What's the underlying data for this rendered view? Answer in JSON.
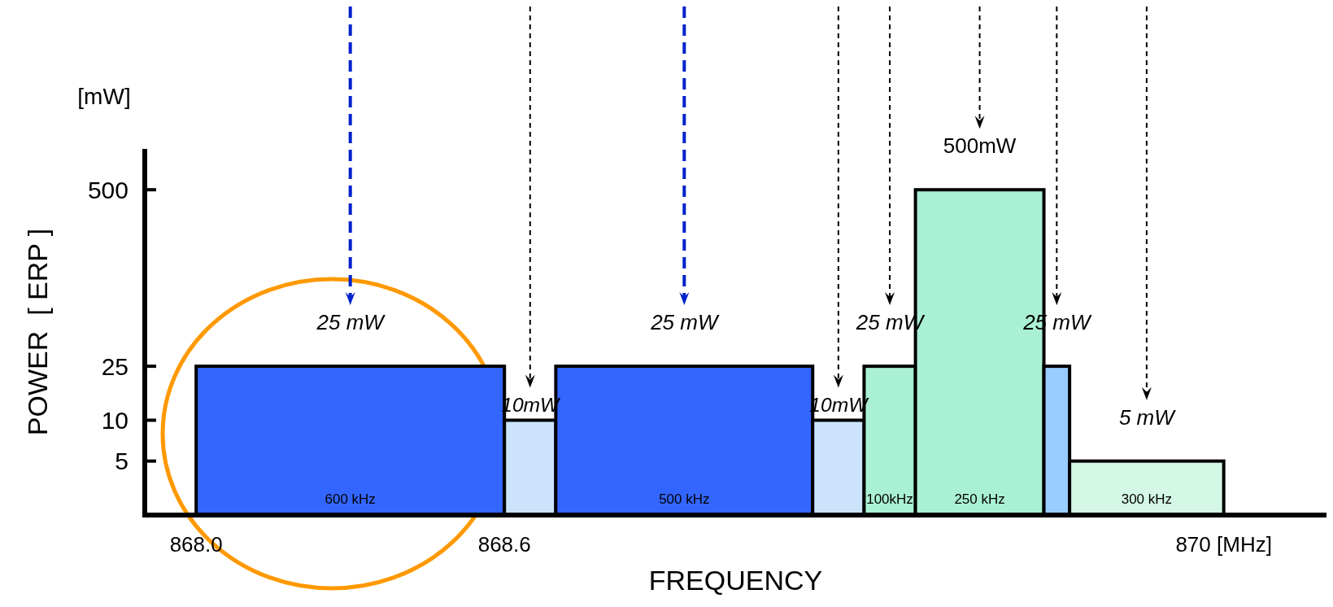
{
  "chart_data": {
    "type": "histogram",
    "log": "y",
    "xlabel": "FREQUENCY",
    "ylabel": "POWER  [ ERP ]",
    "bins": [
      868.0,
      868.6,
      868.7,
      869.2,
      869.3,
      869.4,
      869.65,
      869.7,
      870.0
    ],
    "values": [
      25,
      10,
      25,
      10,
      25,
      500,
      25,
      5
    ],
    "colors": [
      "#3366ff",
      "#cce4fb",
      "#3366ff",
      "#cce4fb",
      "#aaf0d4",
      "#aaf0d4",
      "#99ccff",
      "#d4f7e6"
    ],
    "value_labels": [
      "25 mW",
      "10mW",
      "25 mW",
      "10mW",
      "25 mW",
      "500mW",
      "25 mW",
      "5 mW"
    ],
    "xlim": [
      867.9,
      870.2
    ],
    "xticks": [
      {
        "value": 868.0,
        "label": "868.0"
      },
      {
        "value": 868.6,
        "label": "868.6"
      },
      {
        "value": 870,
        "label": "870 [MHz]"
      }
    ],
    "ylim": [
      2,
      1000
    ],
    "yticks": [
      5,
      10,
      25,
      500
    ],
    "annotations": [
      "[mW]",
      "600 kHz",
      "500 kHz",
      "100kHz",
      "250 kHz",
      "300 kHz"
    ],
    "grid": false
  }
}
